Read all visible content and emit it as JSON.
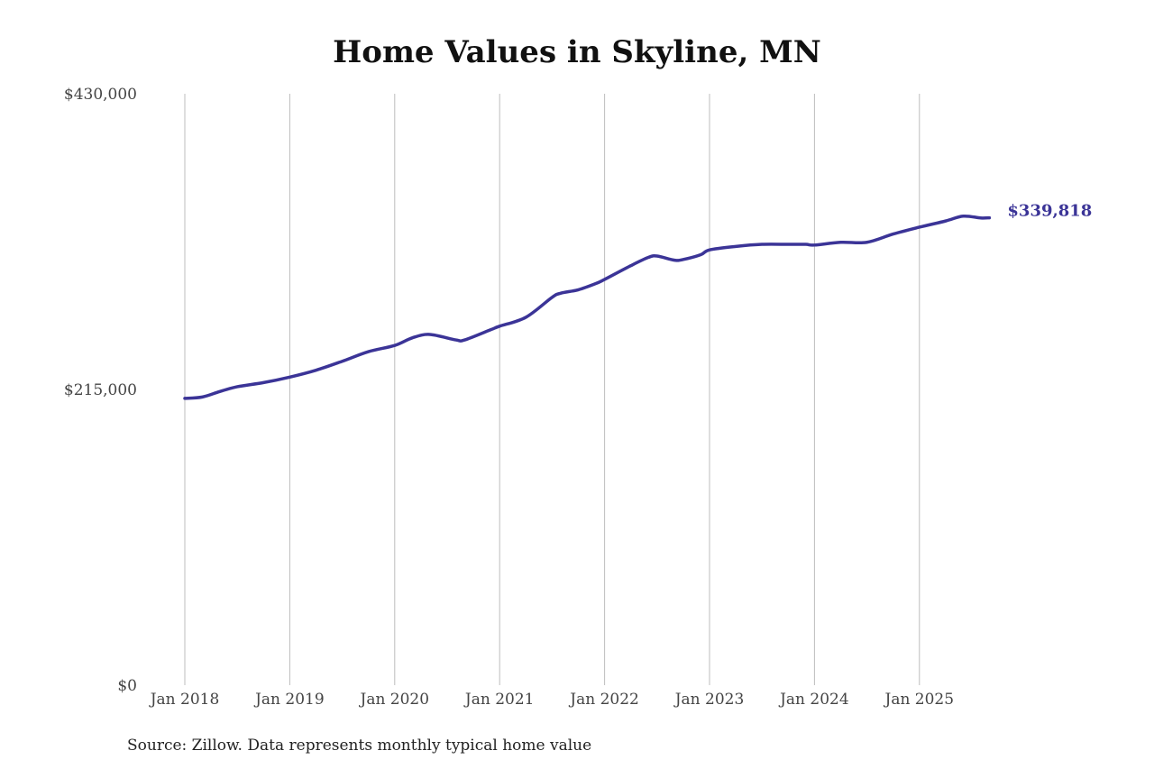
{
  "chart_data": {
    "type": "line",
    "title": "Home Values in Skyline, MN",
    "xlabel": "",
    "ylabel": "",
    "ylim": [
      0,
      430000
    ],
    "y_ticks": [
      {
        "value": 0,
        "label": "$0"
      },
      {
        "value": 215000,
        "label": "$215,000"
      },
      {
        "value": 430000,
        "label": "$430,000"
      }
    ],
    "x_ticks": [
      {
        "value": "2018-01",
        "label": "Jan 2018"
      },
      {
        "value": "2019-01",
        "label": "Jan 2019"
      },
      {
        "value": "2020-01",
        "label": "Jan 2020"
      },
      {
        "value": "2021-01",
        "label": "Jan 2021"
      },
      {
        "value": "2022-01",
        "label": "Jan 2022"
      },
      {
        "value": "2023-01",
        "label": "Jan 2023"
      },
      {
        "value": "2024-01",
        "label": "Jan 2024"
      },
      {
        "value": "2025-01",
        "label": "Jan 2025"
      }
    ],
    "grid": {
      "vertical": true,
      "horizontal": false
    },
    "line_color": "#3b3497",
    "series": [
      {
        "x": [
          "2018-01",
          "2018-03",
          "2018-05",
          "2018-07",
          "2018-10",
          "2019-01",
          "2019-04",
          "2019-07",
          "2019-10",
          "2020-01",
          "2020-03",
          "2020-05",
          "2020-08",
          "2020-09",
          "2020-12",
          "2021-01",
          "2021-04",
          "2021-07",
          "2021-08",
          "2021-10",
          "2021-12",
          "2022-01",
          "2022-04",
          "2022-06",
          "2022-07",
          "2022-09",
          "2022-10",
          "2022-12",
          "2023-01",
          "2023-04",
          "2023-07",
          "2023-10",
          "2023-12",
          "2024-01",
          "2024-04",
          "2024-07",
          "2024-10",
          "2025-01",
          "2025-04",
          "2025-06",
          "2025-08",
          "2025-09"
        ],
        "y": [
          208500,
          209500,
          213500,
          217000,
          220000,
          224000,
          229000,
          235500,
          242500,
          247000,
          252500,
          255000,
          251000,
          251000,
          258500,
          261000,
          267500,
          282000,
          285000,
          287500,
          292000,
          295000,
          305000,
          311000,
          312000,
          309000,
          309500,
          313000,
          316500,
          319000,
          320500,
          320500,
          320500,
          320000,
          322000,
          322000,
          328000,
          333000,
          337500,
          341000,
          339700,
          339818
        ]
      }
    ],
    "end_label": "$339,818",
    "source": "Source: Zillow. Data represents monthly typical home value"
  }
}
